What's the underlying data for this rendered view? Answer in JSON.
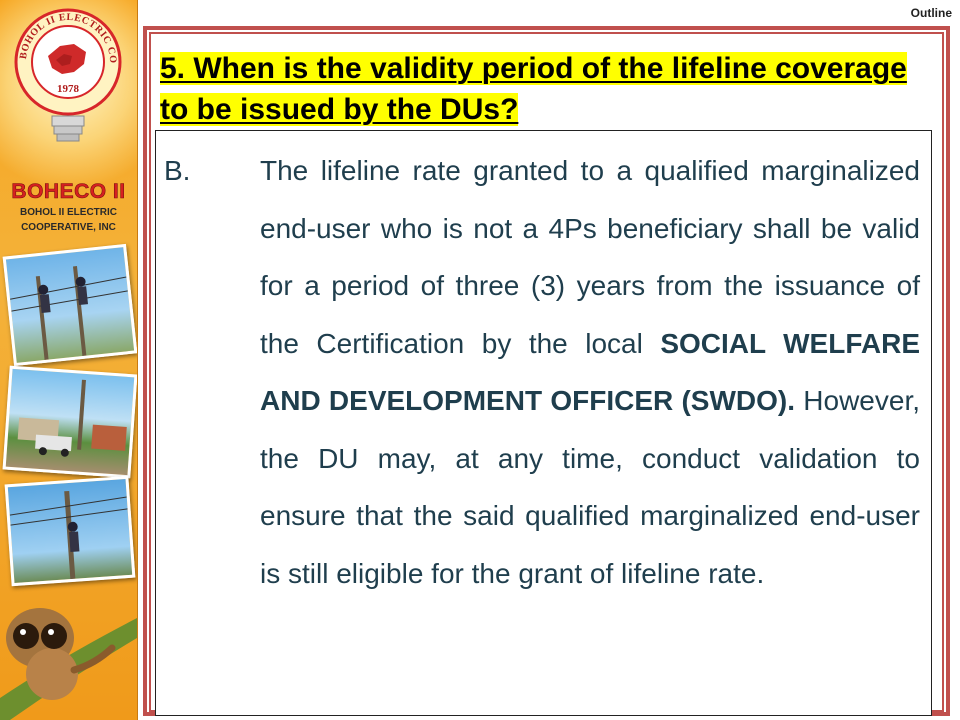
{
  "nav": {
    "outline_label": "Outline"
  },
  "branding": {
    "logo_ring_text": "BOHOL II ELECTRIC COOPERATIVE, INC",
    "logo_year": "1978",
    "org_short": "BOHECO II",
    "org_full_line1": "BOHOL II ELECTRIC",
    "org_full_line2": "COOPERATIVE, INC"
  },
  "slide": {
    "title": "5. When is the validity period of the lifeline coverage to be issued by the DUs?",
    "item_letter": "B.",
    "item_text_part1": "The lifeline rate granted to a qualified marginalized end-user who is not a 4Ps beneficiary shall be valid for a period of three (3) years from the issuance of the Certification by the local ",
    "item_text_bold": "SOCIAL WELFARE AND DEVELOPMENT OFFICER (SWDO).",
    "item_text_part2": " However, the DU may, at any time, conduct validation to ensure that the said qualified marginalized end-user is still eligible for the grant of lifeline rate."
  },
  "colors": {
    "frame": "#c0504d",
    "title_highlight": "#ffff00",
    "body_text": "#1f3e4d",
    "sidebar": "#f6a41e",
    "brand_red": "#d62020"
  },
  "icons": [
    "cooperative-logo-icon",
    "tarsier-illustration"
  ]
}
